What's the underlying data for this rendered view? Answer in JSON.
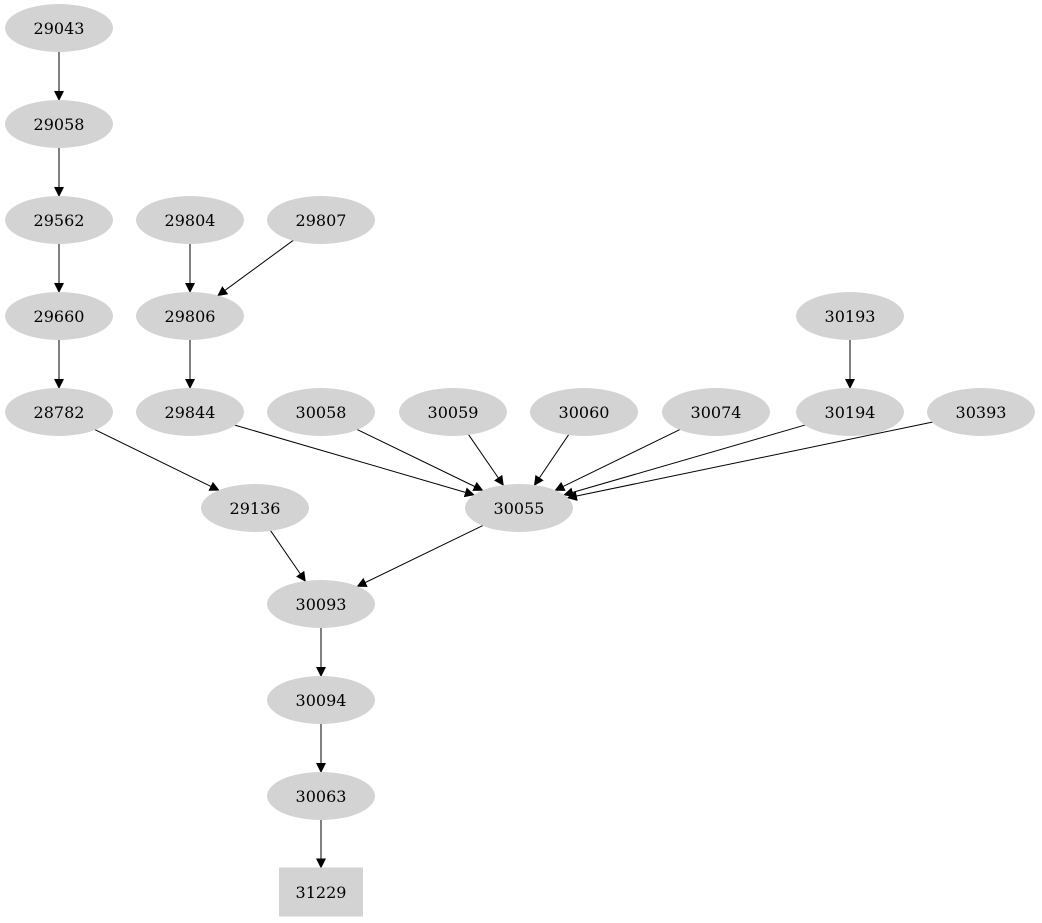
{
  "graph": {
    "node_fill": "#d3d3d3",
    "edge_color": "#000000",
    "nodes": [
      {
        "id": "29043",
        "shape": "ellipse"
      },
      {
        "id": "29058",
        "shape": "ellipse"
      },
      {
        "id": "29562",
        "shape": "ellipse"
      },
      {
        "id": "29660",
        "shape": "ellipse"
      },
      {
        "id": "28782",
        "shape": "ellipse"
      },
      {
        "id": "29804",
        "shape": "ellipse"
      },
      {
        "id": "29807",
        "shape": "ellipse"
      },
      {
        "id": "29806",
        "shape": "ellipse"
      },
      {
        "id": "29844",
        "shape": "ellipse"
      },
      {
        "id": "30058",
        "shape": "ellipse"
      },
      {
        "id": "30059",
        "shape": "ellipse"
      },
      {
        "id": "30060",
        "shape": "ellipse"
      },
      {
        "id": "30074",
        "shape": "ellipse"
      },
      {
        "id": "30193",
        "shape": "ellipse"
      },
      {
        "id": "30194",
        "shape": "ellipse"
      },
      {
        "id": "30393",
        "shape": "ellipse"
      },
      {
        "id": "29136",
        "shape": "ellipse"
      },
      {
        "id": "30055",
        "shape": "ellipse"
      },
      {
        "id": "30093",
        "shape": "ellipse"
      },
      {
        "id": "30094",
        "shape": "ellipse"
      },
      {
        "id": "30063",
        "shape": "ellipse"
      },
      {
        "id": "31229",
        "shape": "box"
      }
    ],
    "edges": [
      [
        "29043",
        "29058"
      ],
      [
        "29058",
        "29562"
      ],
      [
        "29562",
        "29660"
      ],
      [
        "29660",
        "28782"
      ],
      [
        "29804",
        "29806"
      ],
      [
        "29807",
        "29806"
      ],
      [
        "29806",
        "29844"
      ],
      [
        "30193",
        "30194"
      ],
      [
        "28782",
        "29136"
      ],
      [
        "29844",
        "30055"
      ],
      [
        "30058",
        "30055"
      ],
      [
        "30059",
        "30055"
      ],
      [
        "30060",
        "30055"
      ],
      [
        "30074",
        "30055"
      ],
      [
        "30194",
        "30055"
      ],
      [
        "30393",
        "30055"
      ],
      [
        "29136",
        "30093"
      ],
      [
        "30055",
        "30093"
      ],
      [
        "30093",
        "30094"
      ],
      [
        "30094",
        "30063"
      ],
      [
        "30063",
        "31229"
      ]
    ]
  }
}
